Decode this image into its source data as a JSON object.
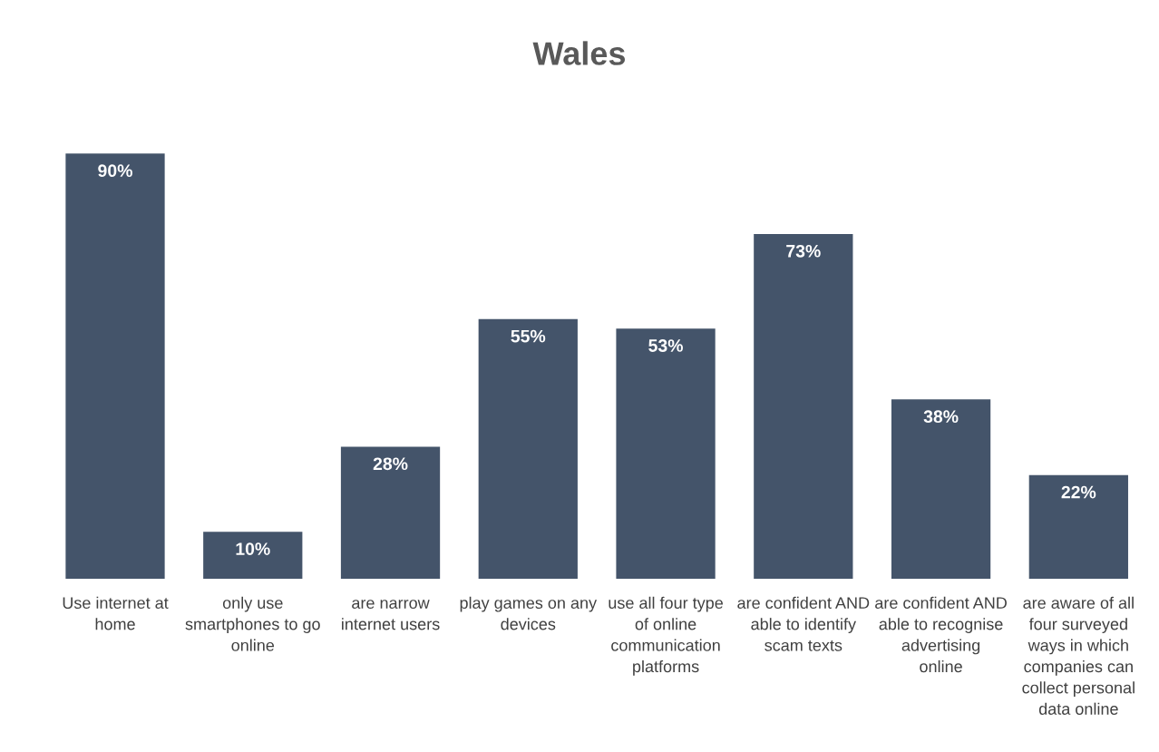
{
  "chart_data": {
    "type": "bar",
    "title": "Wales",
    "categories": [
      "Use internet at home",
      "only use smartphones to go online",
      "are narrow internet users",
      "play games on any devices",
      "use all four type of online communication platforms",
      "are confident AND able to identify scam texts",
      "are confident AND able to recognise advertising online",
      "are aware of all four surveyed ways in which companies can collect personal data online"
    ],
    "values": [
      90,
      10,
      28,
      55,
      53,
      73,
      38,
      22
    ],
    "value_labels": [
      "90%",
      "10%",
      "28%",
      "55%",
      "53%",
      "73%",
      "38%",
      "22%"
    ],
    "color": "#44546a",
    "grid": false,
    "legend": false,
    "tick_labels": "x"
  }
}
